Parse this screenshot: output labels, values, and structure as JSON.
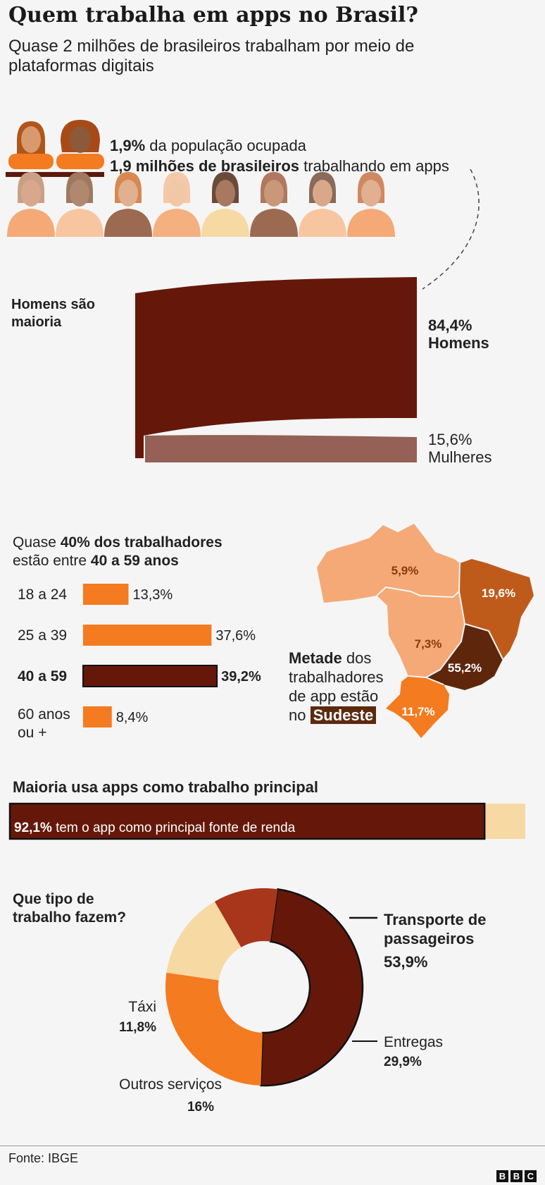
{
  "title": "Quem trabalha em apps no Brasil?",
  "subtitle": "Quase 2 milhões de brasileiros trabalham por meio de plataformas digitais",
  "population": {
    "pct": "1,9%",
    "pct_text": " da população ocupada",
    "count": "1,9 milhões de brasileiros",
    "count_text": " trabalhando em apps"
  },
  "gender": {
    "heading": "Homens são maioria",
    "men_pct": "84,4%",
    "men_label": "Homens",
    "women_pct": "15,6%",
    "women_label": "Mulheres"
  },
  "age": {
    "heading_pre": "Quase ",
    "heading_bold1": "40% dos trabalhadores",
    "heading_mid": "estão entre ",
    "heading_bold2": "40 a 59 anos"
  },
  "region": {
    "text_bold": "Metade",
    "text1": " dos",
    "text2": "trabalhadores",
    "text3": "de app estão",
    "text4": "no ",
    "highlight": "Sudeste"
  },
  "main_job": {
    "heading": "Maioria usa apps como trabalho principal",
    "pct": "92,1%",
    "text": " tem o app como principal fonte de renda"
  },
  "work_type": {
    "heading_line1": "Que tipo de",
    "heading_line2": "trabalho fazem?"
  },
  "source": "Fonte: IBGE",
  "logo": [
    "B",
    "B",
    "C"
  ],
  "colors": {
    "dark_brown": "#65180a",
    "orange": "#f47b20",
    "light_orange": "#f5a976",
    "red_brown": "#a8361a",
    "cream": "#f7d9a3",
    "medium_brown": "#bf5b1a",
    "mauve": "#956055"
  },
  "chart_data": [
    {
      "type": "bar",
      "title": "Homens são maioria",
      "categories": [
        "Homens",
        "Mulheres"
      ],
      "values": [
        84.4,
        15.6
      ],
      "labels": [
        "84,4%",
        "15,6%"
      ]
    },
    {
      "type": "bar",
      "orientation": "horizontal",
      "categories": [
        "18 a 24",
        "25 a 39",
        "40 a 59",
        "60 anos ou +"
      ],
      "values": [
        13.3,
        37.6,
        39.2,
        8.4
      ],
      "labels": [
        "13,3%",
        "37,6%",
        "39,2%",
        "8,4%"
      ],
      "highlight": "40 a 59"
    },
    {
      "type": "map",
      "regions": [
        {
          "name": "Norte",
          "value": 5.9,
          "label": "5,9%"
        },
        {
          "name": "Nordeste",
          "value": 19.6,
          "label": "19,6%"
        },
        {
          "name": "Centro-Oeste",
          "value": 7.3,
          "label": "7,3%"
        },
        {
          "name": "Sudeste",
          "value": 55.2,
          "label": "55,2%"
        },
        {
          "name": "Sul",
          "value": 11.7,
          "label": "11,7%"
        }
      ]
    },
    {
      "type": "bar",
      "title": "Maioria usa apps como trabalho principal",
      "categories": [
        "principal fonte de renda",
        "outros"
      ],
      "values": [
        92.1,
        7.9
      ]
    },
    {
      "type": "pie",
      "title": "Que tipo de trabalho fazem?",
      "donut": true,
      "slices": [
        {
          "name": "Transporte de passageiros",
          "value": 53.9,
          "label": "53,9%",
          "color": "#65180a"
        },
        {
          "name": "Entregas",
          "value": 29.9,
          "label": "29,9%",
          "color": "#f47b20"
        },
        {
          "name": "Outros serviços",
          "value": 16.0,
          "label": "16%",
          "color": "#f7d9a3"
        },
        {
          "name": "Táxi",
          "value": 11.8,
          "label": "11,8%",
          "color": "#a8361a"
        }
      ]
    }
  ]
}
